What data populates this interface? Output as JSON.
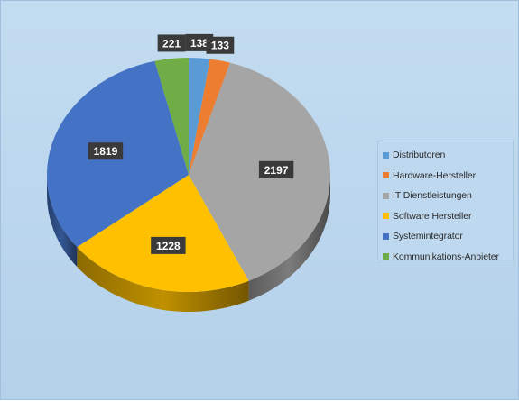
{
  "chart_data": {
    "type": "pie",
    "style": "3d",
    "title": "",
    "legend_position": "right",
    "categories": [
      "Distributoren",
      "Hardware-Hersteller",
      "IT Dienstleistungen",
      "Software Hersteller",
      "Systemintegrator",
      "Kommunikations-Anbieter"
    ],
    "values": [
      138,
      133,
      2197,
      1228,
      1819,
      221
    ],
    "colors": [
      "#5b9bd5",
      "#ed7d31",
      "#a5a5a5",
      "#ffc000",
      "#4472c4",
      "#70ad47"
    ],
    "data_labels": [
      "138",
      "133",
      "2197",
      "1228",
      "1819",
      "221"
    ]
  }
}
